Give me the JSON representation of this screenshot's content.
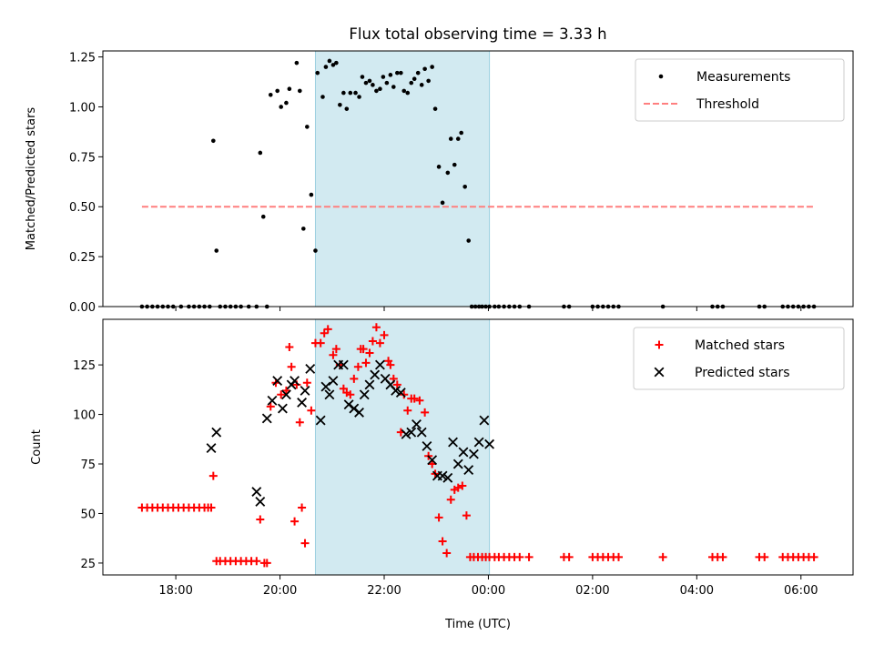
{
  "chart_data": {
    "title": "Flux total observing time = 3.33 h",
    "xlabel": "Time (UTC)",
    "x_unit": "hour",
    "xlim": [
      16.6,
      31.0
    ],
    "x_ticks": [
      18,
      20,
      22,
      24,
      26,
      28,
      30
    ],
    "x_tick_labels": [
      "18:00",
      "20:00",
      "22:00",
      "00:00",
      "02:00",
      "04:00",
      "06:00"
    ],
    "shade": {
      "x": [
        20.68,
        24.02
      ],
      "color": "#add8e6"
    },
    "panels": [
      {
        "type": "scatter",
        "ylabel": "Matched/Predicted stars",
        "ylim": [
          0,
          1.28
        ],
        "y_ticks": [
          0,
          0.25,
          0.5,
          0.75,
          1.0,
          1.25
        ],
        "y_tick_labels": [
          "0.00",
          "0.25",
          "0.50",
          "0.75",
          "1.00",
          "1.25"
        ],
        "legend": "top-right",
        "series": [
          {
            "name": "Measurements",
            "marker": "dot",
            "color": "#000000",
            "x": [
              17.35,
              17.45,
              17.55,
              17.65,
              17.75,
              17.85,
              17.95,
              18.1,
              18.25,
              18.35,
              18.45,
              18.55,
              18.65,
              18.72,
              18.78,
              18.85,
              18.95,
              19.05,
              19.15,
              19.25,
              19.4,
              19.55,
              19.62,
              19.68,
              19.75,
              19.82,
              19.95,
              20.02,
              20.12,
              20.18,
              20.32,
              20.38,
              20.45,
              20.52,
              20.6,
              20.68,
              20.72,
              20.82,
              20.88,
              20.95,
              21.02,
              21.08,
              21.15,
              21.22,
              21.28,
              21.35,
              21.45,
              21.52,
              21.58,
              21.65,
              21.72,
              21.78,
              21.85,
              21.92,
              21.98,
              22.05,
              22.12,
              22.18,
              22.25,
              22.32,
              22.38,
              22.45,
              22.52,
              22.58,
              22.65,
              22.72,
              22.78,
              22.85,
              22.92,
              22.98,
              23.05,
              23.12,
              23.22,
              23.28,
              23.35,
              23.42,
              23.48,
              23.55,
              23.62,
              23.68,
              23.75,
              23.82,
              23.88,
              23.95,
              24.02,
              24.12,
              24.2,
              24.3,
              24.4,
              24.5,
              24.6,
              24.78,
              25.45,
              25.55,
              26.0,
              26.1,
              26.2,
              26.3,
              26.4,
              26.5,
              27.35,
              28.3,
              28.4,
              28.5,
              29.2,
              29.3,
              29.65,
              29.75,
              29.85,
              29.95,
              30.05,
              30.15,
              30.25
            ],
            "y": [
              0,
              0,
              0,
              0,
              0,
              0,
              0,
              0,
              0,
              0,
              0,
              0,
              0,
              0.83,
              0.28,
              0,
              0,
              0,
              0,
              0,
              0,
              0,
              0.77,
              0.45,
              0,
              1.06,
              1.08,
              1.0,
              1.02,
              1.09,
              1.22,
              1.08,
              0.39,
              0.9,
              0.56,
              0.28,
              1.17,
              1.05,
              1.2,
              1.23,
              1.21,
              1.22,
              1.01,
              1.07,
              0.99,
              1.07,
              1.07,
              1.05,
              1.15,
              1.12,
              1.13,
              1.11,
              1.08,
              1.09,
              1.15,
              1.12,
              1.16,
              1.1,
              1.17,
              1.17,
              1.08,
              1.07,
              1.12,
              1.14,
              1.17,
              1.11,
              1.19,
              1.13,
              1.2,
              0.99,
              0.7,
              0.52,
              0.67,
              0.84,
              0.71,
              0.84,
              0.87,
              0.6,
              0.33,
              0,
              0,
              0,
              0,
              0,
              0,
              0,
              0,
              0,
              0,
              0,
              0,
              0,
              0,
              0,
              0,
              0,
              0,
              0,
              0,
              0,
              0,
              0,
              0,
              0,
              0,
              0,
              0,
              0,
              0,
              0,
              0,
              0,
              0
            ]
          },
          {
            "name": "Threshold",
            "style": "dashed",
            "color": "#ff7f7f",
            "x": [
              17.35,
              30.25
            ],
            "y": [
              0.5,
              0.5
            ]
          }
        ]
      },
      {
        "type": "scatter",
        "ylabel": "Count",
        "ylim": [
          19,
          148
        ],
        "y_ticks": [
          25,
          50,
          75,
          100,
          125
        ],
        "y_tick_labels": [
          "25",
          "50",
          "75",
          "100",
          "125"
        ],
        "legend": "top-right",
        "series": [
          {
            "name": "Matched stars",
            "marker": "plus",
            "color": "#ff0000",
            "x": [
              17.35,
              17.45,
              17.55,
              17.65,
              17.75,
              17.85,
              17.95,
              18.05,
              18.15,
              18.25,
              18.35,
              18.45,
              18.55,
              18.62,
              18.68,
              18.72,
              18.78,
              18.85,
              18.95,
              19.05,
              19.15,
              19.25,
              19.35,
              19.45,
              19.55,
              19.62,
              19.7,
              19.75,
              19.82,
              19.92,
              20.02,
              20.12,
              20.18,
              20.22,
              20.28,
              20.32,
              20.38,
              20.42,
              20.48,
              20.52,
              20.6,
              20.68,
              20.78,
              20.85,
              20.92,
              21.02,
              21.08,
              21.15,
              21.22,
              21.28,
              21.35,
              21.42,
              21.5,
              21.55,
              21.6,
              21.65,
              21.72,
              21.78,
              21.85,
              21.92,
              22.0,
              22.08,
              22.12,
              22.18,
              22.25,
              22.32,
              22.38,
              22.45,
              22.52,
              22.58,
              22.68,
              22.78,
              22.85,
              22.92,
              22.98,
              23.05,
              23.12,
              23.2,
              23.28,
              23.35,
              23.42,
              23.5,
              23.58,
              23.65,
              23.72,
              23.8,
              23.88,
              23.95,
              24.02,
              24.12,
              24.2,
              24.3,
              24.4,
              24.5,
              24.6,
              24.78,
              25.45,
              25.55,
              26.0,
              26.1,
              26.2,
              26.3,
              26.4,
              26.5,
              27.35,
              28.3,
              28.4,
              28.5,
              29.2,
              29.3,
              29.65,
              29.75,
              29.85,
              29.95,
              30.05,
              30.15,
              30.25
            ],
            "y": [
              53,
              53,
              53,
              53,
              53,
              53,
              53,
              53,
              53,
              53,
              53,
              53,
              53,
              53,
              53,
              69,
              26,
              26,
              26,
              26,
              26,
              26,
              26,
              26,
              26,
              47,
              25,
              25,
              104,
              116,
              110,
              112,
              134,
              124,
              46,
              115,
              96,
              53,
              35,
              116,
              102,
              136,
              136,
              141,
              143,
              130,
              133,
              125,
              113,
              111,
              110,
              118,
              124,
              133,
              133,
              126,
              131,
              137,
              144,
              136,
              140,
              127,
              125,
              118,
              115,
              91,
              110,
              102,
              108,
              108,
              107,
              101,
              79,
              75,
              70,
              48,
              36,
              30,
              57,
              62,
              63,
              64,
              49,
              28,
              28,
              28,
              28,
              28,
              28,
              28,
              28,
              28,
              28,
              28,
              28,
              28,
              28,
              28,
              28,
              28,
              28,
              28,
              28,
              28,
              28,
              28,
              28,
              28,
              28,
              28,
              28,
              28,
              28,
              28,
              28,
              28,
              28
            ]
          },
          {
            "name": "Predicted stars",
            "marker": "x",
            "color": "#000000",
            "x": [
              18.68,
              18.78,
              19.55,
              19.62,
              19.75,
              19.85,
              19.95,
              20.05,
              20.12,
              20.22,
              20.28,
              20.42,
              20.48,
              20.58,
              20.78,
              20.88,
              20.95,
              21.02,
              21.12,
              21.22,
              21.32,
              21.42,
              21.52,
              21.62,
              21.72,
              21.82,
              21.92,
              22.02,
              22.12,
              22.22,
              22.32,
              22.42,
              22.52,
              22.62,
              22.72,
              22.82,
              22.92,
              23.02,
              23.12,
              23.22,
              23.32,
              23.42,
              23.52,
              23.62,
              23.72,
              23.82,
              23.92,
              24.02
            ],
            "y": [
              83,
              91,
              61,
              56,
              98,
              107,
              117,
              103,
              110,
              115,
              117,
              106,
              112,
              123,
              97,
              114,
              110,
              117,
              125,
              125,
              105,
              103,
              101,
              110,
              115,
              120,
              125,
              118,
              115,
              112,
              111,
              90,
              91,
              95,
              91,
              84,
              77,
              69,
              69,
              68,
              86,
              75,
              81,
              72,
              80,
              86,
              97,
              85
            ]
          }
        ]
      }
    ]
  }
}
